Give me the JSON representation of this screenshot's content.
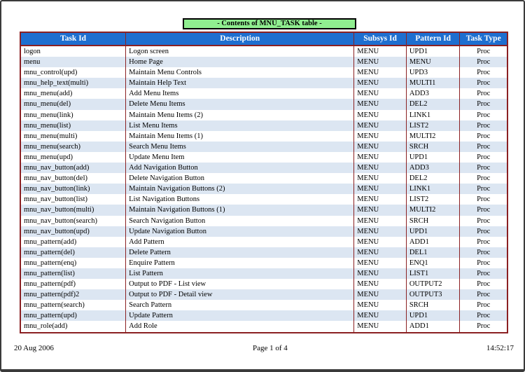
{
  "title": "- Contents of MNU_TASK table -",
  "footer": {
    "date": "20 Aug 2006",
    "page": "Page 1 of 4",
    "time": "14:52:17"
  },
  "colors": {
    "header_bg": "#1E6FD0",
    "header_text": "#FFFFFF",
    "title_bg": "#90EE90",
    "row_alt_bg": "#DCE6F2",
    "table_border": "#8B2022",
    "frame_border": "#3A3A3A"
  },
  "table": {
    "columns": [
      "Task Id",
      "Description",
      "Subsys Id",
      "Pattern Id",
      "Task Type"
    ],
    "rows": [
      [
        "logon",
        "Logon screen",
        "MENU",
        "UPD1",
        "Proc"
      ],
      [
        "menu",
        "Home Page",
        "MENU",
        "MENU",
        "Proc"
      ],
      [
        "mnu_control(upd)",
        "Maintain Menu Controls",
        "MENU",
        "UPD3",
        "Proc"
      ],
      [
        "mnu_help_text(multi)",
        "Maintain Help Text",
        "MENU",
        "MULTI1",
        "Proc"
      ],
      [
        "mnu_menu(add)",
        "Add Menu Items",
        "MENU",
        "ADD3",
        "Proc"
      ],
      [
        "mnu_menu(del)",
        "Delete Menu Items",
        "MENU",
        "DEL2",
        "Proc"
      ],
      [
        "mnu_menu(link)",
        "Maintain Menu Items (2)",
        "MENU",
        "LINK1",
        "Proc"
      ],
      [
        "mnu_menu(list)",
        "List Menu Items",
        "MENU",
        "LIST2",
        "Proc"
      ],
      [
        "mnu_menu(multi)",
        "Maintain Menu Items (1)",
        "MENU",
        "MULTI2",
        "Proc"
      ],
      [
        "mnu_menu(search)",
        "Search Menu Items",
        "MENU",
        "SRCH",
        "Proc"
      ],
      [
        "mnu_menu(upd)",
        "Update Menu Item",
        "MENU",
        "UPD1",
        "Proc"
      ],
      [
        "mnu_nav_button(add)",
        "Add Navigation Button",
        "MENU",
        "ADD3",
        "Proc"
      ],
      [
        "mnu_nav_button(del)",
        "Delete Navigation Button",
        "MENU",
        "DEL2",
        "Proc"
      ],
      [
        "mnu_nav_button(link)",
        "Maintain Navigation Buttons (2)",
        "MENU",
        "LINK1",
        "Proc"
      ],
      [
        "mnu_nav_button(list)",
        "List Navigation Buttons",
        "MENU",
        "LIST2",
        "Proc"
      ],
      [
        "mnu_nav_button(multi)",
        "Maintain Navigation Buttons (1)",
        "MENU",
        "MULTI2",
        "Proc"
      ],
      [
        "mnu_nav_button(search)",
        "Search Navigation Button",
        "MENU",
        "SRCH",
        "Proc"
      ],
      [
        "mnu_nav_button(upd)",
        "Update Navigation Button",
        "MENU",
        "UPD1",
        "Proc"
      ],
      [
        "mnu_pattern(add)",
        "Add Pattern",
        "MENU",
        "ADD1",
        "Proc"
      ],
      [
        "mnu_pattern(del)",
        "Delete Pattern",
        "MENU",
        "DEL1",
        "Proc"
      ],
      [
        "mnu_pattern(enq)",
        "Enquire Pattern",
        "MENU",
        "ENQ1",
        "Proc"
      ],
      [
        "mnu_pattern(list)",
        "List Pattern",
        "MENU",
        "LIST1",
        "Proc"
      ],
      [
        "mnu_pattern(pdf)",
        "Output to PDF - List view",
        "MENU",
        "OUTPUT2",
        "Proc"
      ],
      [
        "mnu_pattern(pdf)2",
        "Output to PDF - Detail view",
        "MENU",
        "OUTPUT3",
        "Proc"
      ],
      [
        "mnu_pattern(search)",
        "Search Pattern",
        "MENU",
        "SRCH",
        "Proc"
      ],
      [
        "mnu_pattern(upd)",
        "Update Pattern",
        "MENU",
        "UPD1",
        "Proc"
      ],
      [
        "mnu_role(add)",
        "Add Role",
        "MENU",
        "ADD1",
        "Proc"
      ]
    ]
  }
}
